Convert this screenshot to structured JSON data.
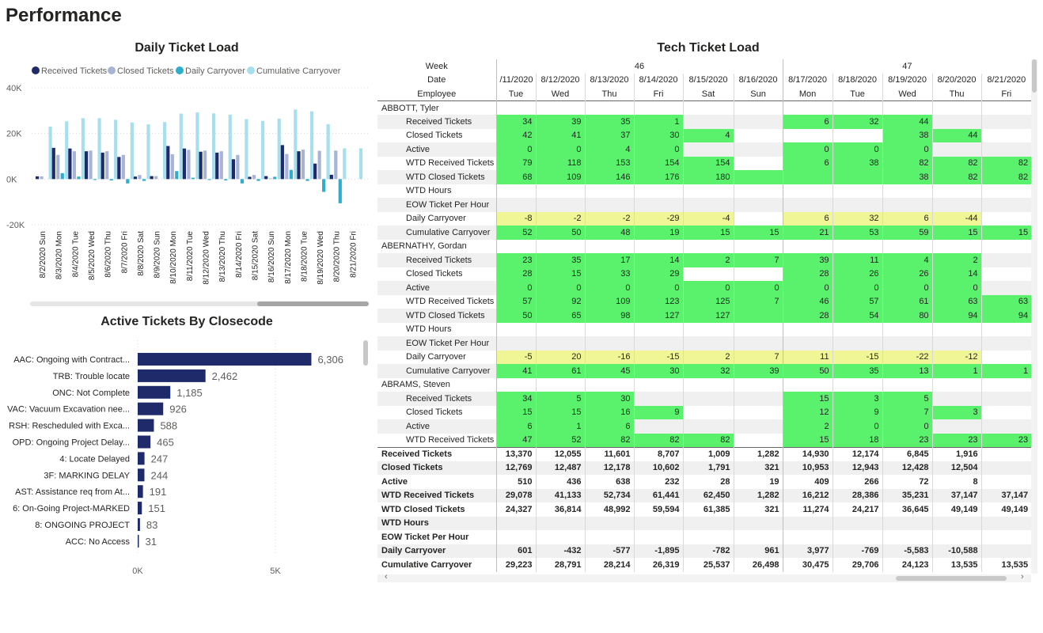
{
  "page": {
    "title": "Performance"
  },
  "colors": {
    "received": "#1f2a6b",
    "closed": "#a7b4d4",
    "daily_carryover": "#2eaecd",
    "cumulative_carryover": "#a8dfef",
    "bar": "#1f2a6b",
    "green_cell": "#5af16d",
    "yellow_cell": "#f0f595"
  },
  "chart_data": [
    {
      "type": "bar",
      "title": "Daily Ticket Load",
      "categories": [
        "8/2/2020 Sun",
        "8/3/2020 Mon",
        "8/4/2020 Tue",
        "8/5/2020 Wed",
        "8/6/2020 Thu",
        "8/7/2020 Fri",
        "8/8/2020 Sat",
        "8/9/2020 Sun",
        "8/10/2020 Mon",
        "8/11/2020 Tue",
        "8/12/2020 Wed",
        "8/13/2020 Thu",
        "8/14/2020 Fri",
        "8/15/2020 Sat",
        "8/16/2020 Sun",
        "8/17/2020 Mon",
        "8/18/2020 Tue",
        "8/19/2020 Wed",
        "8/20/2020 Thu",
        "8/21/2020 Fri"
      ],
      "series": [
        {
          "name": "Received Tickets",
          "values": [
            1200,
            13700,
            13400,
            12200,
            11600,
            9700,
            1100,
            1300,
            14500,
            13400,
            12000,
            11600,
            8700,
            1000,
            1300,
            14900,
            12200,
            6800,
            1900,
            0
          ]
        },
        {
          "name": "Closed Tickets",
          "values": [
            1200,
            10600,
            12200,
            12500,
            12200,
            10600,
            1800,
            1300,
            10900,
            12800,
            12500,
            12200,
            10600,
            1800,
            300,
            11000,
            12900,
            12400,
            12500,
            0
          ]
        },
        {
          "name": "Daily Carryover",
          "values": [
            0,
            2600,
            1100,
            -400,
            -600,
            -1900,
            -800,
            0,
            3500,
            600,
            -400,
            -600,
            -1900,
            -800,
            1000,
            4000,
            -800,
            -5600,
            -10600,
            0
          ]
        },
        {
          "name": "Cumulative Carryover",
          "values": [
            23000,
            25300,
            26700,
            26700,
            26000,
            24800,
            24000,
            25000,
            28700,
            29200,
            28800,
            28200,
            26300,
            25500,
            26500,
            30500,
            29700,
            24100,
            13500,
            13500
          ]
        }
      ],
      "yticks": [
        "40K",
        "20K",
        "0K",
        "-20K"
      ],
      "ylim": [
        -20000,
        40000
      ]
    },
    {
      "type": "bar",
      "title": "Active Tickets By Closecode",
      "categories": [
        "AAC: Ongoing with Contract...",
        "TRB: Trouble locate",
        "ONC: Not Complete",
        "VAC: Vacuum Excavation nee...",
        "RSH: Rescheduled with Exca...",
        "OPD: Ongoing Project Delay...",
        "4: Locate Delayed",
        "3F: MARKING DELAY",
        "AST: Assistance req from At...",
        "6: On-Going Project-MARKED",
        "8: ONGOING PROJECT",
        "ACC: No Access"
      ],
      "values": [
        6306,
        2462,
        1185,
        926,
        588,
        465,
        247,
        244,
        191,
        151,
        83,
        31
      ],
      "labels": [
        "6,306",
        "2,462",
        "1,185",
        "926",
        "588",
        "465",
        "247",
        "244",
        "191",
        "151",
        "83",
        "31"
      ],
      "xticks": [
        "0K",
        "5K"
      ],
      "xlim": [
        0,
        7500
      ]
    }
  ],
  "matrix": {
    "title": "Tech Ticket Load",
    "header_labels": {
      "week": "Week",
      "date": "Date",
      "employee": "Employee"
    },
    "weeks": [
      {
        "label": "46",
        "span": 6
      },
      {
        "label": "47",
        "span": 5
      }
    ],
    "dates": [
      "/11/2020",
      "8/12/2020",
      "8/13/2020",
      "8/14/2020",
      "8/15/2020",
      "8/16/2020",
      "8/17/2020",
      "8/18/2020",
      "8/19/2020",
      "8/20/2020",
      "8/21/2020"
    ],
    "days": [
      "Tue",
      "Wed",
      "Thu",
      "Fri",
      "Sat",
      "Sun",
      "Mon",
      "Tue",
      "Wed",
      "Thu",
      "Fri"
    ],
    "rows": [
      {
        "label": "ABBOTT, Tyler",
        "group": true,
        "values": [
          "",
          "",
          "",
          "",
          "",
          "",
          "",
          "",
          "",
          "",
          ""
        ],
        "colors": [
          "",
          "",
          "",
          "",
          "",
          "",
          "",
          "",
          "",
          "",
          ""
        ]
      },
      {
        "label": "Received Tickets",
        "values": [
          "34",
          "39",
          "35",
          "1",
          "",
          "",
          "6",
          "32",
          "44",
          "",
          ""
        ],
        "colors": [
          "g",
          "g",
          "g",
          "g",
          "",
          "",
          "g",
          "g",
          "g",
          "",
          ""
        ]
      },
      {
        "label": "Closed Tickets",
        "values": [
          "42",
          "41",
          "37",
          "30",
          "4",
          "",
          "",
          "",
          "38",
          "44",
          ""
        ],
        "colors": [
          "g",
          "g",
          "g",
          "g",
          "g",
          "",
          "",
          "",
          "g",
          "g",
          ""
        ]
      },
      {
        "label": "Active",
        "values": [
          "0",
          "0",
          "4",
          "0",
          "",
          "",
          "0",
          "0",
          "0",
          "",
          ""
        ],
        "colors": [
          "g",
          "g",
          "g",
          "g",
          "",
          "",
          "g",
          "g",
          "g",
          "",
          ""
        ]
      },
      {
        "label": "WTD Received Tickets",
        "values": [
          "79",
          "118",
          "153",
          "154",
          "154",
          "",
          "6",
          "38",
          "82",
          "82",
          "82"
        ],
        "colors": [
          "g",
          "g",
          "g",
          "g",
          "g",
          "",
          "g",
          "g",
          "g",
          "g",
          "g"
        ]
      },
      {
        "label": "WTD Closed Tickets",
        "values": [
          "68",
          "109",
          "146",
          "176",
          "180",
          "",
          "",
          "",
          "38",
          "82",
          "82"
        ],
        "colors": [
          "g",
          "g",
          "g",
          "g",
          "g",
          "g",
          "g",
          "g",
          "g",
          "g",
          "g"
        ]
      },
      {
        "label": "WTD Hours",
        "values": [
          "",
          "",
          "",
          "",
          "",
          "",
          "",
          "",
          "",
          "",
          ""
        ],
        "colors": [
          "",
          "",
          "",
          "",
          "",
          "",
          "",
          "",
          "",
          "",
          ""
        ]
      },
      {
        "label": "EOW Ticket Per Hour",
        "values": [
          "",
          "",
          "",
          "",
          "",
          "",
          "",
          "",
          "",
          "",
          ""
        ],
        "colors": [
          "",
          "",
          "",
          "",
          "",
          "",
          "",
          "",
          "",
          "",
          ""
        ]
      },
      {
        "label": "Daily Carryover",
        "values": [
          "-8",
          "-2",
          "-2",
          "-29",
          "-4",
          "",
          "6",
          "32",
          "6",
          "-44",
          ""
        ],
        "colors": [
          "y",
          "y",
          "y",
          "y",
          "y",
          "",
          "y",
          "y",
          "y",
          "y",
          ""
        ]
      },
      {
        "label": "Cumulative Carryover",
        "values": [
          "52",
          "50",
          "48",
          "19",
          "15",
          "15",
          "21",
          "53",
          "59",
          "15",
          "15"
        ],
        "colors": [
          "g",
          "g",
          "g",
          "g",
          "g",
          "g",
          "g",
          "g",
          "g",
          "g",
          "g"
        ]
      },
      {
        "label": "ABERNATHY, Gordan",
        "group": true,
        "values": [
          "",
          "",
          "",
          "",
          "",
          "",
          "",
          "",
          "",
          "",
          ""
        ],
        "colors": [
          "",
          "",
          "",
          "",
          "",
          "",
          "",
          "",
          "",
          "",
          ""
        ]
      },
      {
        "label": "Received Tickets",
        "values": [
          "23",
          "35",
          "17",
          "14",
          "2",
          "7",
          "39",
          "11",
          "4",
          "2",
          ""
        ],
        "colors": [
          "g",
          "g",
          "g",
          "g",
          "g",
          "g",
          "g",
          "g",
          "g",
          "g",
          ""
        ]
      },
      {
        "label": "Closed Tickets",
        "values": [
          "28",
          "15",
          "33",
          "29",
          "",
          "",
          "28",
          "26",
          "26",
          "14",
          ""
        ],
        "colors": [
          "g",
          "g",
          "g",
          "g",
          "",
          "",
          "g",
          "g",
          "g",
          "g",
          ""
        ]
      },
      {
        "label": "Active",
        "values": [
          "0",
          "0",
          "0",
          "0",
          "0",
          "0",
          "0",
          "0",
          "0",
          "0",
          ""
        ],
        "colors": [
          "g",
          "g",
          "g",
          "g",
          "g",
          "g",
          "g",
          "g",
          "g",
          "g",
          ""
        ]
      },
      {
        "label": "WTD Received Tickets",
        "values": [
          "57",
          "92",
          "109",
          "123",
          "125",
          "7",
          "46",
          "57",
          "61",
          "63",
          "63"
        ],
        "colors": [
          "g",
          "g",
          "g",
          "g",
          "g",
          "g",
          "g",
          "g",
          "g",
          "g",
          "g"
        ]
      },
      {
        "label": "WTD Closed Tickets",
        "values": [
          "50",
          "65",
          "98",
          "127",
          "127",
          "",
          "28",
          "54",
          "80",
          "94",
          "94"
        ],
        "colors": [
          "g",
          "g",
          "g",
          "g",
          "g",
          "g",
          "g",
          "g",
          "g",
          "g",
          "g"
        ]
      },
      {
        "label": "WTD Hours",
        "values": [
          "",
          "",
          "",
          "",
          "",
          "",
          "",
          "",
          "",
          "",
          ""
        ],
        "colors": [
          "",
          "",
          "",
          "",
          "",
          "",
          "",
          "",
          "",
          "",
          ""
        ]
      },
      {
        "label": "EOW Ticket Per Hour",
        "values": [
          "",
          "",
          "",
          "",
          "",
          "",
          "",
          "",
          "",
          "",
          ""
        ],
        "colors": [
          "",
          "",
          "",
          "",
          "",
          "",
          "",
          "",
          "",
          "",
          ""
        ]
      },
      {
        "label": "Daily Carryover",
        "values": [
          "-5",
          "20",
          "-16",
          "-15",
          "2",
          "7",
          "11",
          "-15",
          "-22",
          "-12",
          ""
        ],
        "colors": [
          "y",
          "y",
          "y",
          "y",
          "y",
          "y",
          "y",
          "y",
          "y",
          "y",
          ""
        ]
      },
      {
        "label": "Cumulative Carryover",
        "values": [
          "41",
          "61",
          "45",
          "30",
          "32",
          "39",
          "50",
          "35",
          "13",
          "1",
          "1"
        ],
        "colors": [
          "g",
          "g",
          "g",
          "g",
          "g",
          "g",
          "g",
          "g",
          "g",
          "g",
          "g"
        ]
      },
      {
        "label": "ABRAMS, Steven",
        "group": true,
        "values": [
          "",
          "",
          "",
          "",
          "",
          "",
          "",
          "",
          "",
          "",
          ""
        ],
        "colors": [
          "",
          "",
          "",
          "",
          "",
          "",
          "",
          "",
          "",
          "",
          ""
        ]
      },
      {
        "label": "Received Tickets",
        "values": [
          "34",
          "5",
          "30",
          "",
          "",
          "",
          "15",
          "3",
          "5",
          "",
          ""
        ],
        "colors": [
          "g",
          "g",
          "g",
          "",
          "",
          "",
          "g",
          "g",
          "g",
          "",
          ""
        ]
      },
      {
        "label": "Closed Tickets",
        "values": [
          "15",
          "15",
          "16",
          "9",
          "",
          "",
          "12",
          "9",
          "7",
          "3",
          ""
        ],
        "colors": [
          "g",
          "g",
          "g",
          "g",
          "",
          "",
          "g",
          "g",
          "g",
          "g",
          ""
        ]
      },
      {
        "label": "Active",
        "values": [
          "6",
          "1",
          "6",
          "",
          "",
          "",
          "2",
          "0",
          "0",
          "",
          ""
        ],
        "colors": [
          "g",
          "g",
          "g",
          "",
          "",
          "",
          "g",
          "g",
          "g",
          "",
          ""
        ]
      },
      {
        "label": "WTD Received Tickets",
        "values": [
          "47",
          "52",
          "82",
          "82",
          "82",
          "",
          "15",
          "18",
          "23",
          "23",
          "23"
        ],
        "colors": [
          "g",
          "g",
          "g",
          "g",
          "g",
          "",
          "g",
          "g",
          "g",
          "g",
          "g"
        ]
      }
    ],
    "totals": [
      {
        "label": "Received Tickets",
        "values": [
          "13,370",
          "12,055",
          "11,601",
          "8,707",
          "1,009",
          "1,282",
          "14,930",
          "12,174",
          "6,845",
          "1,916",
          ""
        ]
      },
      {
        "label": "Closed Tickets",
        "values": [
          "12,769",
          "12,487",
          "12,178",
          "10,602",
          "1,791",
          "321",
          "10,953",
          "12,943",
          "12,428",
          "12,504",
          ""
        ]
      },
      {
        "label": "Active",
        "values": [
          "510",
          "436",
          "638",
          "232",
          "28",
          "19",
          "409",
          "266",
          "72",
          "8",
          ""
        ]
      },
      {
        "label": "WTD Received Tickets",
        "values": [
          "29,078",
          "41,133",
          "52,734",
          "61,441",
          "62,450",
          "1,282",
          "16,212",
          "28,386",
          "35,231",
          "37,147",
          "37,147"
        ]
      },
      {
        "label": "WTD Closed Tickets",
        "values": [
          "24,327",
          "36,814",
          "48,992",
          "59,594",
          "61,385",
          "321",
          "11,274",
          "24,217",
          "36,645",
          "49,149",
          "49,149"
        ]
      },
      {
        "label": "WTD Hours",
        "values": [
          "",
          "",
          "",
          "",
          "",
          "",
          "",
          "",
          "",
          "",
          ""
        ]
      },
      {
        "label": "EOW Ticket Per Hour",
        "values": [
          "",
          "",
          "",
          "",
          "",
          "",
          "",
          "",
          "",
          "",
          ""
        ]
      },
      {
        "label": "Daily Carryover",
        "values": [
          "601",
          "-432",
          "-577",
          "-1,895",
          "-782",
          "961",
          "3,977",
          "-769",
          "-5,583",
          "-10,588",
          ""
        ]
      },
      {
        "label": "Cumulative Carryover",
        "values": [
          "29,223",
          "28,791",
          "28,214",
          "26,319",
          "25,537",
          "26,498",
          "30,475",
          "29,706",
          "24,123",
          "13,535",
          "13,535"
        ]
      }
    ]
  }
}
